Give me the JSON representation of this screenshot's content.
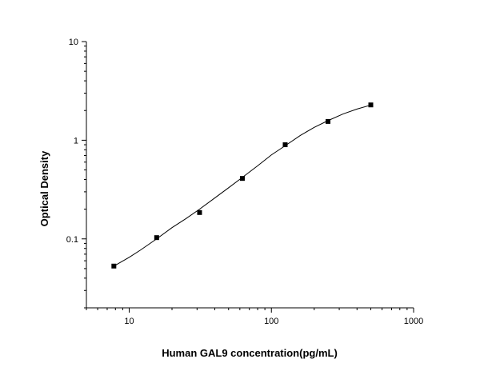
{
  "chart_data": {
    "type": "scatter",
    "title": "",
    "xlabel": "Human GAL9 concentration(pg/mL)",
    "ylabel": "Optical Density",
    "x_scale": "log",
    "y_scale": "log",
    "xlim": [
      5,
      1000
    ],
    "ylim": [
      0.02,
      10
    ],
    "x_ticks": [
      10,
      100,
      1000
    ],
    "x_tick_labels": [
      "10",
      "100",
      "1000"
    ],
    "y_ticks": [
      0.1,
      1,
      10
    ],
    "y_tick_labels": [
      "0.1",
      "1",
      "10"
    ],
    "grid": false,
    "legend": "none",
    "series": [
      {
        "x": [
          7.8,
          15.6,
          31.25,
          62.5,
          125,
          250,
          500
        ],
        "y": [
          0.053,
          0.103,
          0.185,
          0.41,
          0.9,
          1.55,
          2.28
        ]
      }
    ],
    "fit_curve": {
      "x": [
        7.8,
        10,
        12,
        15.6,
        20,
        25,
        31.25,
        40,
        50,
        62.5,
        80,
        100,
        125,
        160,
        200,
        250,
        320,
        400,
        500
      ],
      "y": [
        0.053,
        0.065,
        0.077,
        0.1,
        0.13,
        0.16,
        0.2,
        0.26,
        0.33,
        0.42,
        0.55,
        0.71,
        0.88,
        1.12,
        1.35,
        1.58,
        1.85,
        2.07,
        2.27
      ]
    },
    "marker_color": "#000000",
    "line_color": "#000000"
  }
}
